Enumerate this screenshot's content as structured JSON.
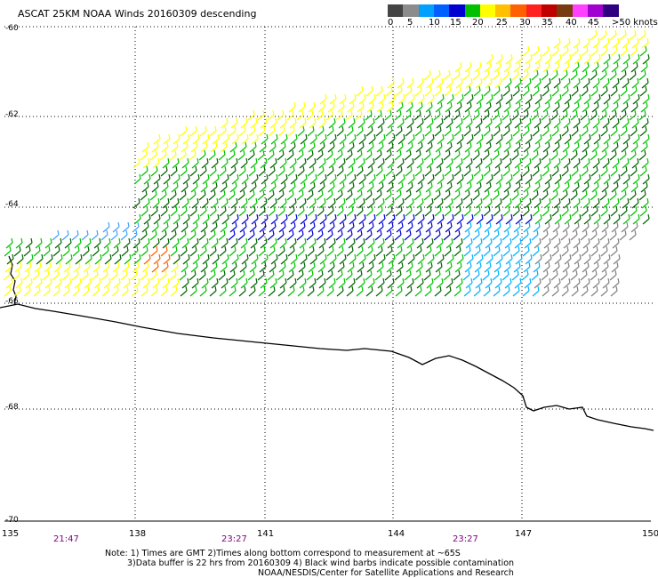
{
  "title": "ASCAT 25KM NOAA Winds 20160309 descending",
  "legend": {
    "labels": [
      "0",
      "5",
      "10",
      "15",
      "20",
      "25",
      "30",
      "35",
      "40",
      "45",
      ">50 knots"
    ],
    "colors": [
      "#444444",
      "#8c8c8c",
      "#00a0ff",
      "#0060ff",
      "#0000d0",
      "#00c000",
      "#ffff00",
      "#ffc000",
      "#ff6000",
      "#ff2020",
      "#c00000",
      "#7a3a10",
      "#ff40ff",
      "#a000d0",
      "#300080"
    ]
  },
  "axes": {
    "lat_labels": [
      "-60",
      "-62",
      "-64",
      "-66",
      "-68",
      "-70"
    ],
    "lon_labels": [
      "135",
      "138",
      "141",
      "144",
      "147",
      "150"
    ],
    "time_labels": [
      "21:47",
      "23:27",
      "23:27"
    ]
  },
  "colors": {
    "yellow": "#ffff00",
    "green": "#00c000",
    "darkgreen": "#006400",
    "blue": "#0000d0",
    "cyan": "#00b0ff",
    "lightblue": "#40a0ff",
    "orange": "#ff6000",
    "gray": "#808080"
  },
  "notes": {
    "line1": "Note: 1) Times are GMT 2)Times along bottom correspond to measurement at ~65S",
    "line2": "3)Data buffer is 22 hrs from 20160309 4) Black wind barbs indicate possible contamination",
    "line3": "NOAA/NESDIS/Center for Satellite Applications and Research"
  }
}
